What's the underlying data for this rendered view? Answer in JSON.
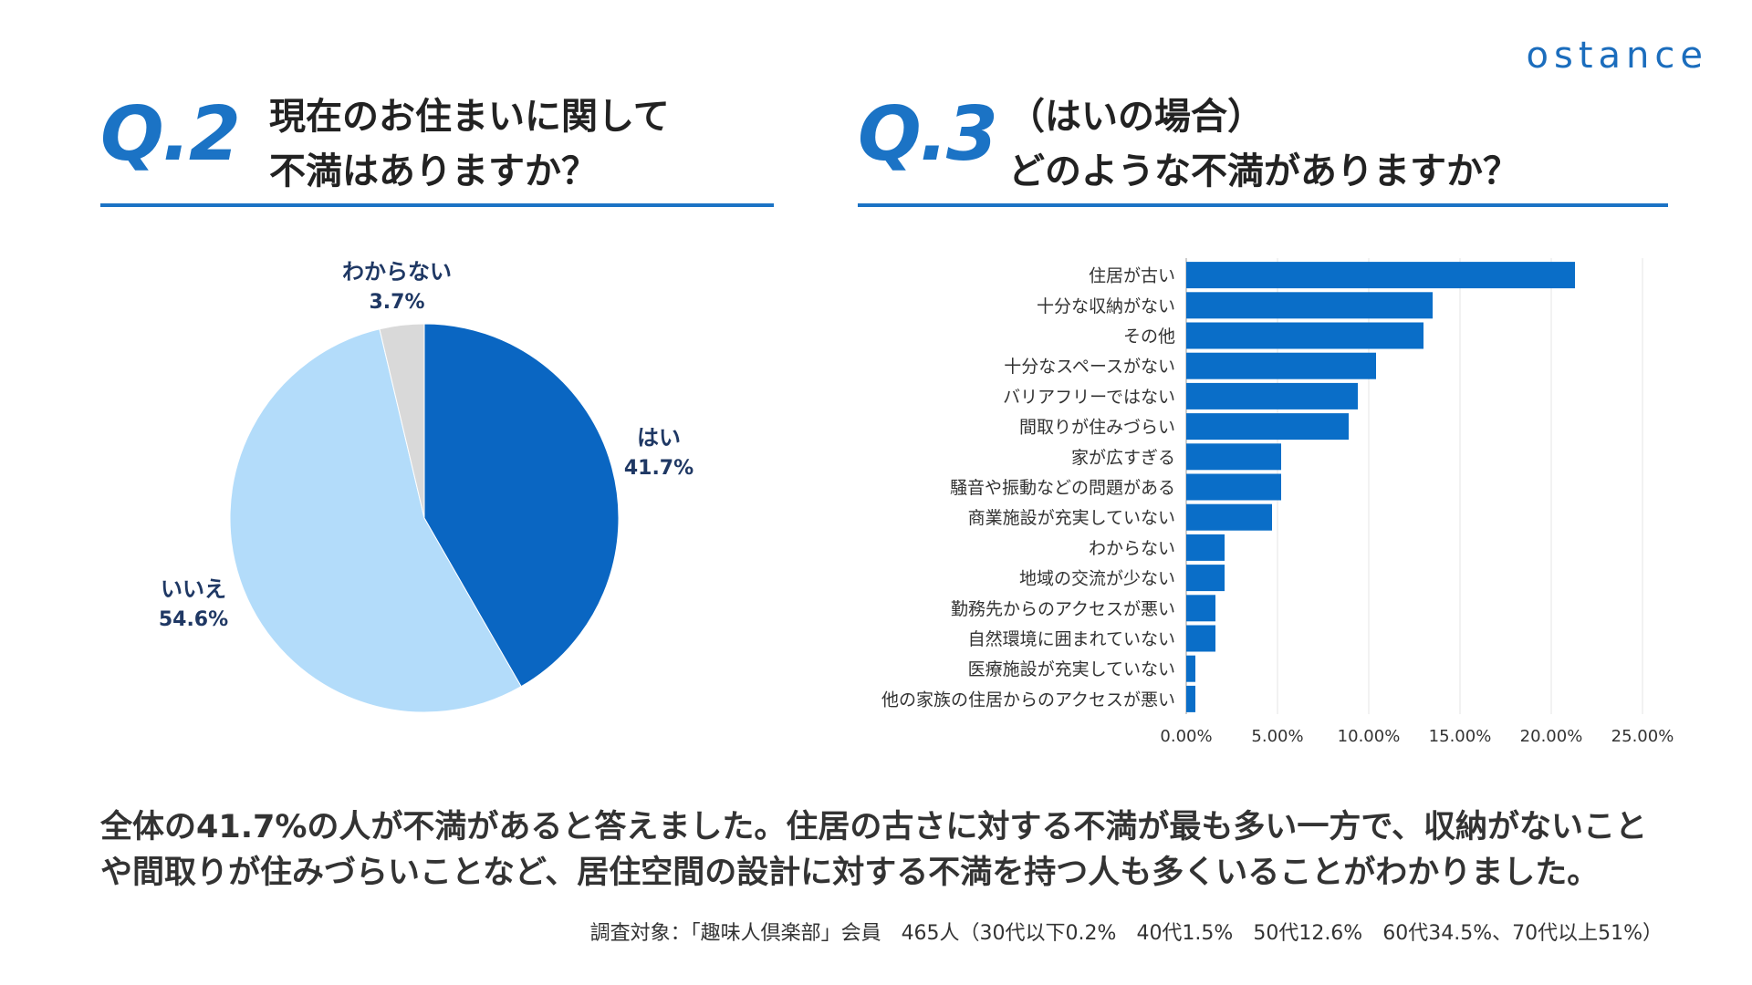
{
  "brand": {
    "logo_text": "ostance"
  },
  "q2": {
    "number": "Q.2",
    "title_line1": "現在のお住まいに関して",
    "title_line2": "不満はありますか？"
  },
  "q3": {
    "number": "Q.3",
    "title_line1": "（はいの場合）",
    "title_line2": "どのような不満がありますか？"
  },
  "chart_data": [
    {
      "type": "pie",
      "title": "現在のお住まいに関して不満はありますか？",
      "slices": [
        {
          "label": "はい",
          "value": 41.7,
          "value_label": "41.7%",
          "color": "#0a66c2"
        },
        {
          "label": "いいえ",
          "value": 54.6,
          "value_label": "54.6%",
          "color": "#b3dcfa"
        },
        {
          "label": "わからない",
          "value": 3.7,
          "value_label": "3.7%",
          "color": "#d9d9d9"
        }
      ],
      "start": "12 o'clock, clockwise"
    },
    {
      "type": "bar",
      "orientation": "horizontal",
      "title": "どのような不満がありますか？",
      "categories": [
        "住居が古い",
        "十分な収納がない",
        "その他",
        "十分なスペースがない",
        "バリアフリーではない",
        "間取りが住みづらい",
        "家が広すぎる",
        "騒音や振動などの問題がある",
        "商業施設が充実していない",
        "わからない",
        "地域の交流が少ない",
        "勤務先からのアクセスが悪い",
        "自然環境に囲まれていない",
        "医療施設が充実していない",
        "他の家族の住居からのアクセスが悪い"
      ],
      "values": [
        21.3,
        13.5,
        13.0,
        10.4,
        9.4,
        8.9,
        5.2,
        5.2,
        4.7,
        2.1,
        2.1,
        1.6,
        1.6,
        0.5,
        0.5
      ],
      "xlim": [
        0,
        25
      ],
      "xticks": [
        "0.00%",
        "5.00%",
        "10.00%",
        "15.00%",
        "20.00%",
        "25.00%"
      ],
      "bar_color": "#0a6ec8",
      "grid": "vertical gridlines"
    }
  ],
  "summary": "全体の41.7%の人が不満があると答えました。住居の古さに対する不満が最も多い一方で、収納がないことや間取りが住みづらいことなど、居住空間の設計に対する不満を持つ人も多くいることがわかりました。",
  "footnote": "調査対象：「趣味人倶楽部」会員　465人（30代以下0.2%　40代1.5%　50代12.6%　60代34.5%、70代以上51%）"
}
